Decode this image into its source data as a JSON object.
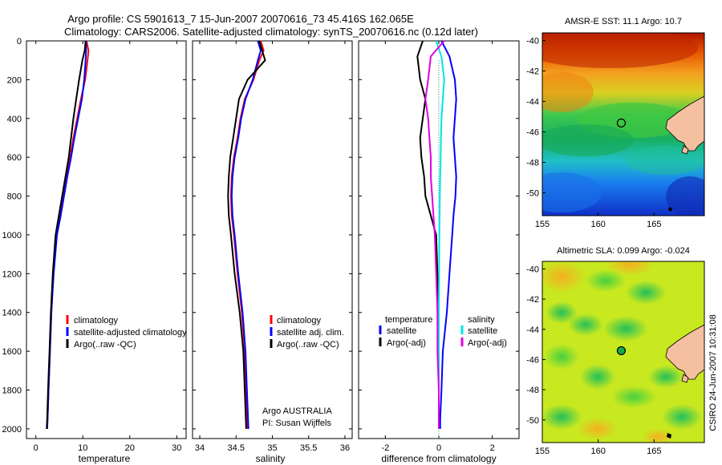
{
  "figure": {
    "title_line1": "Argo profile: CS 5901613_7 15-Jun-2007 20070616_73 45.416S 162.065E",
    "title_line2": "Climatology: CARS2006. Satellite-adjusted climatology: synTS_20070616.nc (0.12d later)",
    "credit_line1": "Argo AUSTRALIA",
    "credit_line2": "PI: Susan Wijffels",
    "side_stamp": "CSIRO 24-Jun-2007 10:31:08"
  },
  "colors": {
    "climatology": "#ff0000",
    "satellite": "#0000ff",
    "argo": "#000000",
    "salinity_satellite": "#00e5e5",
    "salinity_argo": "#e000e0",
    "land": "#f5c0a0"
  },
  "chart_data": [
    {
      "type": "line",
      "id": "temperature_profile",
      "xlabel": "temperature",
      "ylabel": "",
      "xlim": [
        -2,
        32
      ],
      "ylim": [
        2050,
        0
      ],
      "xticks": [
        "0",
        "10",
        "20",
        "30"
      ],
      "yticks": [
        "0",
        "200",
        "400",
        "600",
        "800",
        "1000",
        "1200",
        "1400",
        "1600",
        "1800",
        "2000"
      ],
      "legend": {
        "placement": "lower-left",
        "entries": [
          "climatology",
          "satellite-adjusted climatology",
          "Argo(..raw -QC)"
        ]
      },
      "series": [
        {
          "name": "climatology",
          "color": "#ff0000",
          "x": [
            10.8,
            11.2,
            11.0,
            10.5,
            9.6,
            8.8,
            8.0,
            7.3,
            6.5,
            5.8,
            5.1,
            4.3,
            3.7,
            3.3,
            3.0,
            2.7,
            2.5,
            2.4
          ],
          "y": [
            0,
            50,
            100,
            200,
            300,
            400,
            500,
            600,
            700,
            800,
            900,
            1000,
            1200,
            1400,
            1600,
            1800,
            1950,
            2000
          ]
        },
        {
          "name": "satellite-adjusted climatology",
          "color": "#0000ff",
          "x": [
            10.7,
            10.7,
            10.6,
            10.3,
            9.8,
            9.0,
            8.2,
            7.5,
            6.7,
            6.0,
            5.3,
            4.5,
            3.8,
            3.3,
            3.0,
            2.7,
            2.5,
            2.4
          ],
          "y": [
            0,
            50,
            100,
            200,
            300,
            400,
            500,
            600,
            700,
            800,
            900,
            1000,
            1200,
            1400,
            1600,
            1800,
            1950,
            2000
          ]
        },
        {
          "name": "Argo(..raw -QC)",
          "color": "#000000",
          "x": [
            10.6,
            10.4,
            9.9,
            9.2,
            8.6,
            8.0,
            7.5,
            7.0,
            6.3,
            5.6,
            4.9,
            4.2,
            3.6,
            3.2,
            2.9,
            2.6,
            2.4,
            2.3
          ],
          "y": [
            0,
            50,
            100,
            200,
            300,
            400,
            500,
            600,
            700,
            800,
            900,
            1000,
            1200,
            1400,
            1600,
            1800,
            1950,
            2000
          ]
        }
      ]
    },
    {
      "type": "line",
      "id": "salinity_profile",
      "xlabel": "salinity",
      "ylabel": "",
      "xlim": [
        33.9,
        36.1
      ],
      "ylim": [
        2050,
        0
      ],
      "xticks": [
        "34",
        "34.5",
        "35",
        "35.5",
        "36"
      ],
      "legend": {
        "placement": "lower-right",
        "entries": [
          "climatology",
          "satellite adj. clim.",
          "Argo(..raw -QC)"
        ]
      },
      "series": [
        {
          "name": "climatology",
          "color": "#ff0000",
          "x": [
            34.84,
            34.88,
            34.82,
            34.74,
            34.62,
            34.56,
            34.52,
            34.47,
            34.44,
            34.43,
            34.44,
            34.47,
            34.52,
            34.58,
            34.62,
            34.64,
            34.66
          ],
          "y": [
            0,
            50,
            100,
            200,
            300,
            400,
            500,
            600,
            700,
            800,
            900,
            1000,
            1200,
            1400,
            1600,
            1800,
            2000
          ]
        },
        {
          "name": "satellite adj. clim.",
          "color": "#0000ff",
          "x": [
            34.8,
            34.84,
            34.8,
            34.73,
            34.63,
            34.57,
            34.53,
            34.48,
            34.45,
            34.44,
            34.45,
            34.48,
            34.53,
            34.59,
            34.63,
            34.65,
            34.67
          ],
          "y": [
            0,
            50,
            100,
            200,
            300,
            400,
            500,
            600,
            700,
            800,
            900,
            1000,
            1200,
            1400,
            1600,
            1800,
            2000
          ]
        },
        {
          "name": "Argo(..raw -QC)",
          "color": "#000000",
          "x": [
            34.82,
            34.86,
            34.9,
            34.66,
            34.54,
            34.5,
            34.46,
            34.42,
            34.4,
            34.39,
            34.4,
            34.43,
            34.48,
            34.55,
            34.6,
            34.62,
            34.64
          ],
          "y": [
            0,
            50,
            100,
            200,
            300,
            400,
            500,
            600,
            700,
            800,
            900,
            1000,
            1200,
            1400,
            1600,
            1800,
            2000
          ]
        }
      ]
    },
    {
      "type": "line",
      "id": "difference_profile",
      "xlabel": "difference from climatology",
      "ylabel": "",
      "xlim": [
        -3,
        3
      ],
      "ylim": [
        2050,
        0
      ],
      "xticks": [
        "-2",
        "0",
        "2"
      ],
      "legend": {
        "placement": "lower-center",
        "columns": [
          {
            "heading": "temperature",
            "entries": [
              "satellite",
              "Argo(-adj)"
            ]
          },
          {
            "heading": "salinity",
            "entries": [
              "satellite",
              "Argo(-adj)"
            ]
          }
        ]
      },
      "series": [
        {
          "name": "temperature satellite",
          "color": "#0000ff",
          "x": [
            0.1,
            0.4,
            0.6,
            0.65,
            0.6,
            0.55,
            0.6,
            0.65,
            0.62,
            0.55,
            0.5,
            0.4,
            0.3,
            0.15,
            0.1,
            0.05,
            0.05
          ],
          "y": [
            0,
            80,
            200,
            300,
            400,
            500,
            600,
            700,
            800,
            900,
            1000,
            1200,
            1400,
            1600,
            1800,
            1950,
            2000
          ]
        },
        {
          "name": "temperature Argo(-adj)",
          "color": "#000000",
          "x": [
            -0.6,
            -0.8,
            -0.7,
            -0.5,
            -0.6,
            -0.7,
            -0.65,
            -0.55,
            -0.5,
            -0.3,
            -0.1,
            -0.05,
            0.0,
            0.0,
            0.0,
            0.0,
            0.0
          ],
          "y": [
            0,
            80,
            200,
            300,
            400,
            500,
            600,
            700,
            800,
            900,
            1000,
            1200,
            1400,
            1600,
            1800,
            1950,
            2000
          ]
        },
        {
          "name": "salinity satellite",
          "color": "#00e5e5",
          "x": [
            -0.1,
            0.1,
            0.2,
            0.15,
            0.1,
            0.08,
            0.07,
            0.05,
            0.04,
            0.03,
            0.02,
            0.01,
            0.0,
            0.0,
            0.0,
            0.0
          ],
          "y": [
            0,
            80,
            200,
            300,
            400,
            500,
            600,
            700,
            800,
            900,
            1000,
            1200,
            1400,
            1600,
            1800,
            2000
          ]
        },
        {
          "name": "salinity Argo(-adj)",
          "color": "#e000e0",
          "x": [
            0.2,
            -0.3,
            -0.4,
            -0.5,
            -0.4,
            -0.35,
            -0.3,
            -0.3,
            -0.25,
            -0.2,
            -0.15,
            -0.1,
            -0.05,
            -0.05,
            0.0,
            0.0
          ],
          "y": [
            0,
            80,
            200,
            300,
            400,
            500,
            600,
            700,
            800,
            900,
            1000,
            1200,
            1400,
            1600,
            1800,
            2000
          ]
        }
      ]
    },
    {
      "type": "heatmap",
      "id": "sst_map",
      "title": "AMSR-E SST: 11.1  Argo: 10.7",
      "xlim": [
        155,
        169.5
      ],
      "ylim": [
        -51.5,
        -39.5
      ],
      "xticks": [
        "155",
        "160",
        "165"
      ],
      "yticks": [
        "-40",
        "-42",
        "-44",
        "-46",
        "-48",
        "-50"
      ],
      "marker": {
        "lon": 162.065,
        "lat": -45.416,
        "style": "open circle"
      }
    },
    {
      "type": "heatmap",
      "id": "sla_map",
      "title": "Altimetric SLA: 0.099  Argo: -0.024",
      "xlim": [
        155,
        169.5
      ],
      "ylim": [
        -51.5,
        -39.5
      ],
      "xticks": [
        "155",
        "160",
        "165"
      ],
      "yticks": [
        "-40",
        "-42",
        "-44",
        "-46",
        "-48",
        "-50"
      ],
      "marker": {
        "lon": 162.065,
        "lat": -45.416,
        "style": "filled circle"
      }
    }
  ]
}
